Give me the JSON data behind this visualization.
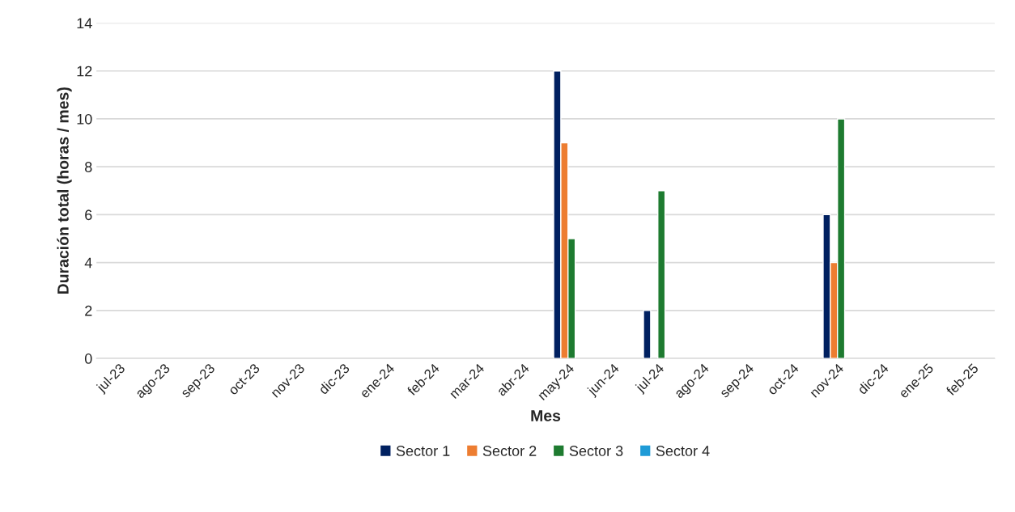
{
  "chart_data": {
    "type": "bar",
    "xlabel": "Mes",
    "ylabel": "Duración total (horas / mes)",
    "categories": [
      "jul-23",
      "ago-23",
      "sep-23",
      "oct-23",
      "nov-23",
      "dic-23",
      "ene-24",
      "feb-24",
      "mar-24",
      "abr-24",
      "may-24",
      "jun-24",
      "jul-24",
      "ago-24",
      "sep-24",
      "oct-24",
      "nov-24",
      "dic-24",
      "ene-25",
      "feb-25"
    ],
    "series": [
      {
        "name": "Sector 1",
        "color": "#002060",
        "values": [
          null,
          null,
          null,
          null,
          null,
          null,
          null,
          null,
          null,
          null,
          12,
          null,
          2,
          null,
          null,
          null,
          6,
          null,
          null,
          null
        ]
      },
      {
        "name": "Sector 2",
        "color": "#ed7d31",
        "values": [
          null,
          null,
          null,
          null,
          null,
          null,
          null,
          null,
          null,
          null,
          9,
          null,
          null,
          null,
          null,
          null,
          4,
          null,
          null,
          null
        ]
      },
      {
        "name": "Sector 3",
        "color": "#1e7b30",
        "values": [
          null,
          null,
          null,
          null,
          null,
          null,
          null,
          null,
          null,
          null,
          5,
          null,
          7,
          null,
          null,
          null,
          10,
          null,
          null,
          null
        ]
      },
      {
        "name": "Sector 4",
        "color": "#1f9bd7",
        "values": [
          null,
          null,
          null,
          null,
          null,
          null,
          null,
          null,
          null,
          null,
          null,
          null,
          null,
          null,
          null,
          null,
          null,
          null,
          null,
          null
        ]
      }
    ],
    "ylim": [
      0,
      14
    ],
    "yticks": [
      0,
      2,
      4,
      6,
      8,
      10,
      12,
      14
    ],
    "grid": "y",
    "legend": "bottom"
  }
}
